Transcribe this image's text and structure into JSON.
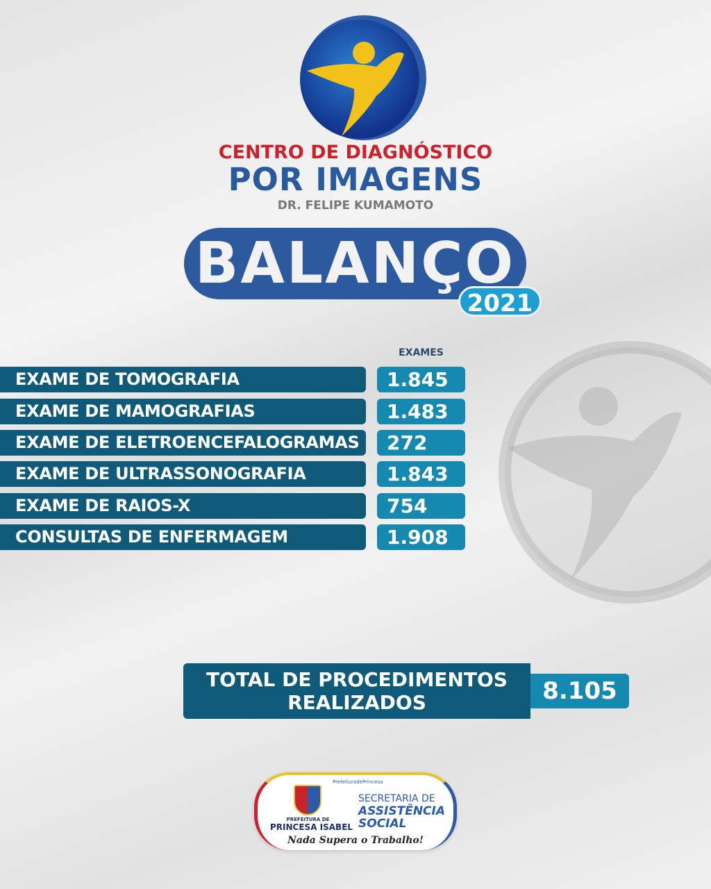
{
  "header": {
    "line1": "CENTRO DE DIAGNÓSTICO",
    "line2": "POR IMAGENS",
    "line3": "DR. FELIPE KUMAMOTO"
  },
  "title": {
    "main": "BALANÇO",
    "year": "2021"
  },
  "table": {
    "column_header": "EXAMES",
    "rows": [
      {
        "label": "EXAME DE TOMOGRAFIA",
        "value": "1.845"
      },
      {
        "label": "EXAME DE MAMOGRAFIAS",
        "value": "1.483"
      },
      {
        "label": "EXAME DE ELETROENCEFALOGRAMAS",
        "value": "272"
      },
      {
        "label": "EXAME DE ULTRASSONOGRAFIA",
        "value": "1.843"
      },
      {
        "label": "EXAME DE RAIOS-X",
        "value": "754"
      },
      {
        "label": "CONSULTAS DE ENFERMAGEM",
        "value": "1.908"
      }
    ]
  },
  "total": {
    "label_line1": "TOTAL DE PROCEDIMENTOS",
    "label_line2": "REALIZADOS",
    "value": "8.105"
  },
  "footer": {
    "social": "PrefeituradePrincesa",
    "prefeitura_small": "PREFEITURA DE",
    "prefeitura": "PRINCESA ISABEL",
    "secretaria": "SECRETARIA DE",
    "assistencia": "ASSISTÊNCIA",
    "social_word": "SOCIAL",
    "slogan": "Nada Supera o Trabalho!"
  },
  "colors": {
    "label_bar": "#0f5a78",
    "value_box": "#1589b0",
    "title_pill": "#2d5a9e",
    "year_pill": "#1d9fd4",
    "red": "#c8232c",
    "yellow": "#f2c21b"
  }
}
